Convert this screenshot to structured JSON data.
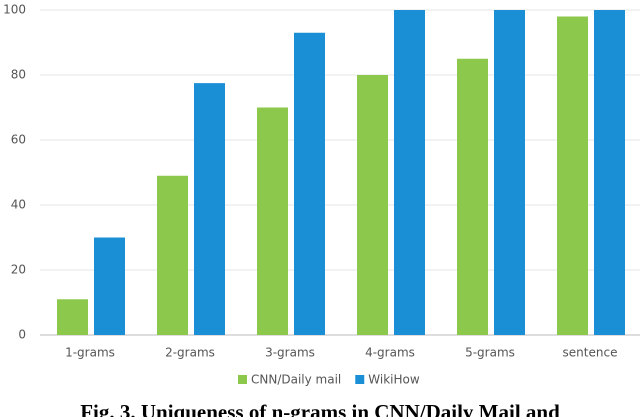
{
  "chart_data": {
    "type": "bar",
    "categories": [
      "1-grams",
      "2-grams",
      "3-grams",
      "4-grams",
      "5-grams",
      "sentence"
    ],
    "series": [
      {
        "name": "CNN/Daily mail",
        "color": "#8cc84b",
        "values": [
          11,
          49,
          70,
          80,
          85,
          98
        ]
      },
      {
        "name": "WikiHow",
        "color": "#1b8fd6",
        "values": [
          30,
          77.5,
          93,
          100,
          100,
          100
        ]
      }
    ],
    "ylim": [
      0,
      100
    ],
    "yticks": [
      0,
      20,
      40,
      60,
      80,
      100
    ],
    "grid": true,
    "legend": "bottom",
    "caption": "Fig. 3. Uniqueness of n-grams in CNN/Daily Mail and"
  }
}
